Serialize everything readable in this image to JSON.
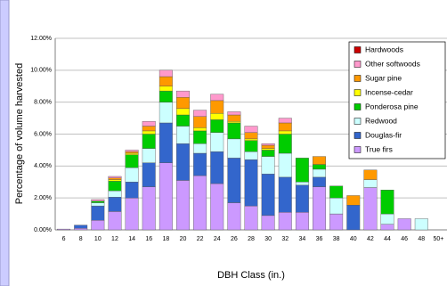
{
  "chart_data": {
    "type": "stacked_bar",
    "y_label": "Percentage of volume harvested",
    "x_label": "DBH Class (in.)",
    "categories": [
      "6",
      "8",
      "10",
      "12",
      "14",
      "16",
      "18",
      "20",
      "22",
      "24",
      "26",
      "28",
      "30",
      "32",
      "34",
      "36",
      "38",
      "40",
      "42",
      "44",
      "46",
      "48",
      "50+"
    ],
    "series": [
      {
        "name": "True firs",
        "color": "#cc99ff",
        "values": [
          0.05,
          0.1,
          0.6,
          1.15,
          2.0,
          2.7,
          4.2,
          3.1,
          3.4,
          2.9,
          1.7,
          1.5,
          0.9,
          1.1,
          1.1,
          2.7,
          1.0,
          0,
          2.65,
          0.35,
          0.7,
          0,
          0
        ]
      },
      {
        "name": "Douglas-fir",
        "color": "#3366cc",
        "values": [
          0,
          0.2,
          0.9,
          0.9,
          1.0,
          1.5,
          2.5,
          2.3,
          1.4,
          2.0,
          2.8,
          2.9,
          2.6,
          2.2,
          1.7,
          0.6,
          0,
          1.55,
          0,
          0,
          0,
          0,
          0
        ]
      },
      {
        "name": "Redwood",
        "color": "#ccffff",
        "values": [
          0,
          0,
          0.2,
          0.4,
          0.9,
          0.9,
          1.3,
          1.1,
          0.6,
          1.2,
          1.2,
          0.5,
          1.1,
          1.5,
          0.2,
          0.5,
          1.0,
          0,
          0.5,
          0.65,
          0,
          0.7,
          0
        ]
      },
      {
        "name": "Ponderosa pine",
        "color": "#00cc00",
        "values": [
          0,
          0,
          0.1,
          0.6,
          0.8,
          0.9,
          0.7,
          0.7,
          0.8,
          0.8,
          1.0,
          0.7,
          0.4,
          1.2,
          1.5,
          0.3,
          0.75,
          0,
          0,
          1.5,
          0,
          0,
          0
        ]
      },
      {
        "name": "Incense-cedar",
        "color": "#ffff00",
        "values": [
          0,
          0,
          0,
          0.1,
          0.1,
          0.2,
          0.3,
          0.4,
          0.2,
          0.4,
          0.1,
          0.1,
          0.1,
          0.2,
          0,
          0,
          0,
          0,
          0,
          0,
          0,
          0,
          0
        ]
      },
      {
        "name": "Sugar pine",
        "color": "#ff9900",
        "values": [
          0,
          0,
          0,
          0.1,
          0.1,
          0.3,
          0.6,
          0.7,
          0.7,
          0.8,
          0.4,
          0.4,
          0.2,
          0.5,
          0,
          0.5,
          0,
          0.6,
          0.6,
          0,
          0,
          0,
          0
        ]
      },
      {
        "name": "Other softwoods",
        "color": "#ff99cc",
        "values": [
          0,
          0,
          0.1,
          0.1,
          0.1,
          0.3,
          0.4,
          0.4,
          0.4,
          0.4,
          0.2,
          0.4,
          0.1,
          0.3,
          0,
          0,
          0,
          0,
          0,
          0,
          0,
          0,
          0
        ]
      },
      {
        "name": "Hardwoods",
        "color": "#cc0000",
        "values": [
          0,
          0,
          0,
          0,
          0,
          0,
          0,
          0,
          0,
          0,
          0,
          0,
          0,
          0,
          0,
          0,
          0,
          0,
          0,
          0,
          0,
          0,
          0
        ]
      }
    ],
    "ylim": [
      0,
      12
    ],
    "yticks": [
      {
        "value": 0,
        "label": "0.00%"
      },
      {
        "value": 2,
        "label": "2.00%"
      },
      {
        "value": 4,
        "label": "4.00%"
      },
      {
        "value": 6,
        "label": "6.00%"
      },
      {
        "value": 8,
        "label": "8.00%"
      },
      {
        "value": 10,
        "label": "10.00%"
      },
      {
        "value": 12,
        "label": "12.00%"
      }
    ],
    "grid": true,
    "legend": "upper right"
  }
}
